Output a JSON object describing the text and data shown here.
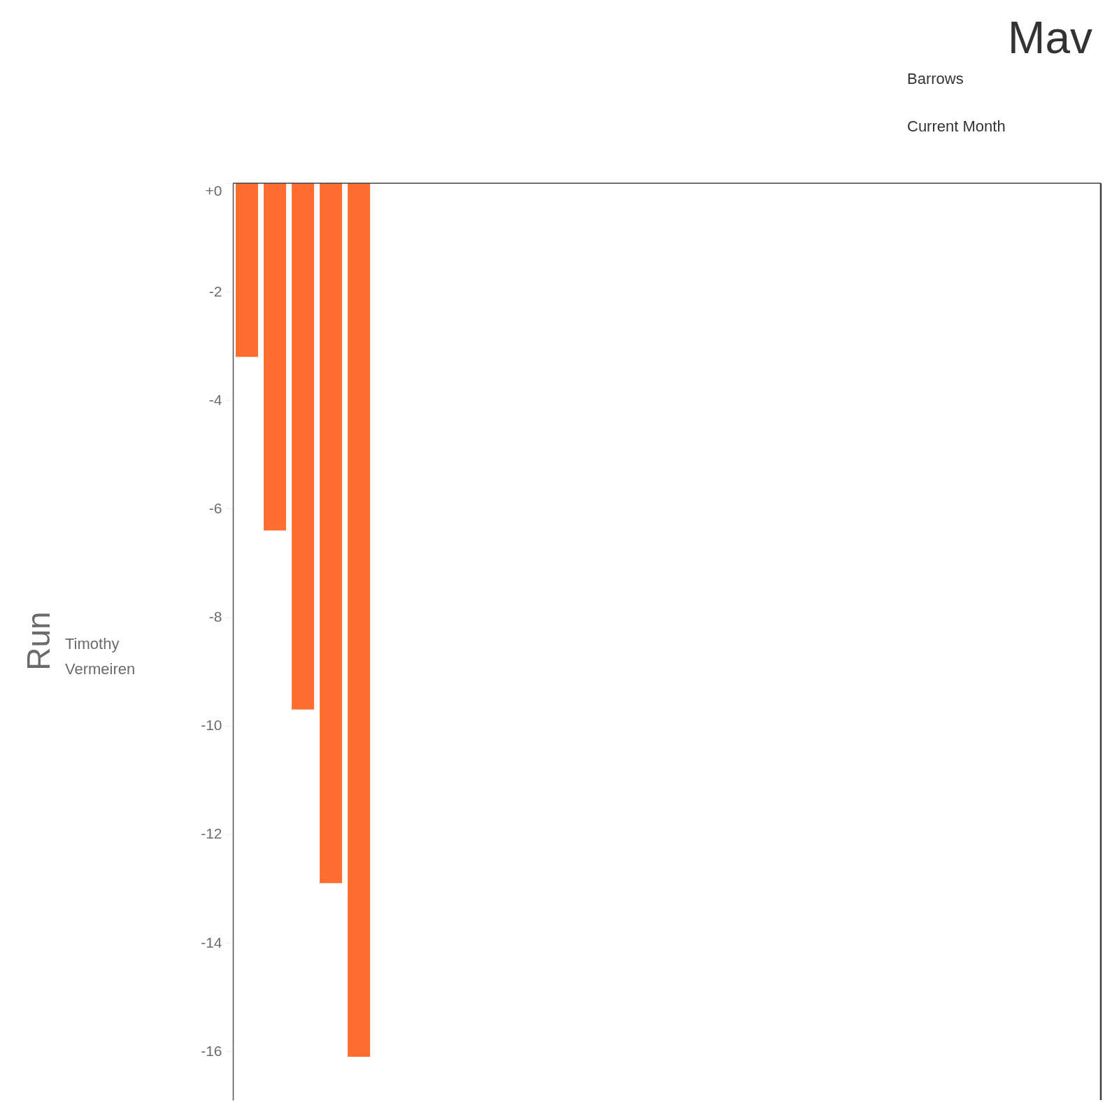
{
  "chart_data": {
    "type": "bar",
    "title": "Mav",
    "subtitle": "Barrows",
    "ylabel": "Run",
    "annotations": [
      "Current Month",
      "Timothy Vermeiren"
    ],
    "categories": [
      null,
      null,
      null,
      null,
      null,
      null,
      null,
      null,
      null,
      null,
      null,
      null,
      null,
      null,
      null,
      null,
      null,
      null,
      null,
      null,
      null,
      null,
      null,
      null,
      null,
      null,
      null,
      null,
      null,
      null,
      null
    ],
    "values": [
      -3.2,
      -6.4,
      -9.7,
      -12.9,
      -16.1,
      null,
      null,
      null,
      null,
      null,
      null,
      null,
      null,
      null,
      null,
      null,
      null,
      null,
      null,
      null,
      null,
      null,
      null,
      null,
      null,
      null,
      null,
      null,
      null,
      null,
      null
    ],
    "color": "#ff6d31",
    "ylim": [
      -16.9,
      0
    ],
    "yticks": [
      {
        "value": 0,
        "label": "+0"
      },
      -2,
      -4,
      -6,
      -8,
      -10,
      -12,
      -14,
      -16
    ]
  }
}
